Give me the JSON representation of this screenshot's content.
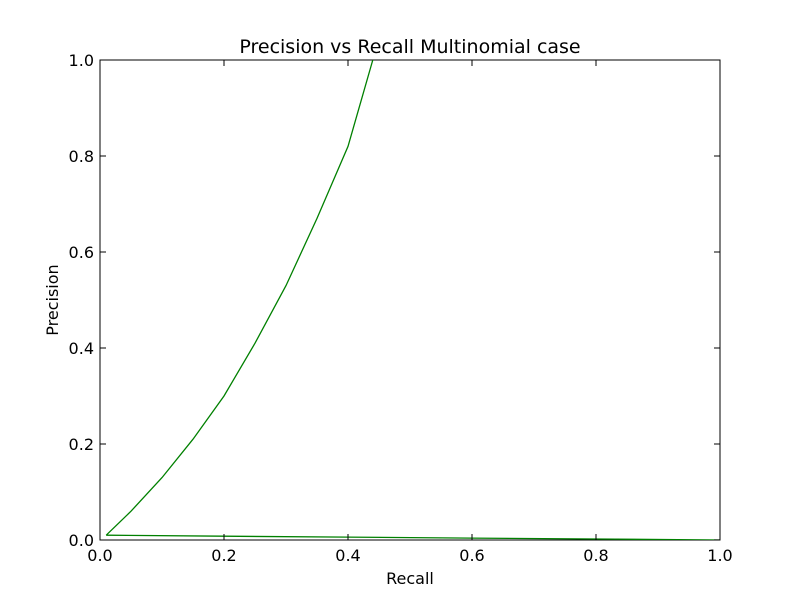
{
  "chart_data": {
    "type": "line",
    "title": "Precision vs Recall Multinomial case",
    "xlabel": "Recall",
    "ylabel": "Precision",
    "xlim": [
      0.0,
      1.0
    ],
    "ylim": [
      0.0,
      1.0
    ],
    "xticks": [
      "0.0",
      "0.2",
      "0.4",
      "0.6",
      "0.8",
      "1.0"
    ],
    "yticks": [
      "0.0",
      "0.2",
      "0.4",
      "0.6",
      "0.8",
      "1.0"
    ],
    "grid": false,
    "series": [
      {
        "color": "#008000",
        "x": [
          0.01,
          0.05,
          0.1,
          0.15,
          0.2,
          0.25,
          0.3,
          0.35,
          0.4,
          0.44
        ],
        "y": [
          0.01,
          0.06,
          0.13,
          0.21,
          0.3,
          0.41,
          0.53,
          0.67,
          0.82,
          1.0
        ]
      },
      {
        "color": "#008000",
        "x": [
          0.01,
          0.2,
          0.4,
          0.6,
          0.8,
          1.0
        ],
        "y": [
          0.01,
          0.008,
          0.006,
          0.004,
          0.002,
          0.0
        ]
      }
    ]
  }
}
